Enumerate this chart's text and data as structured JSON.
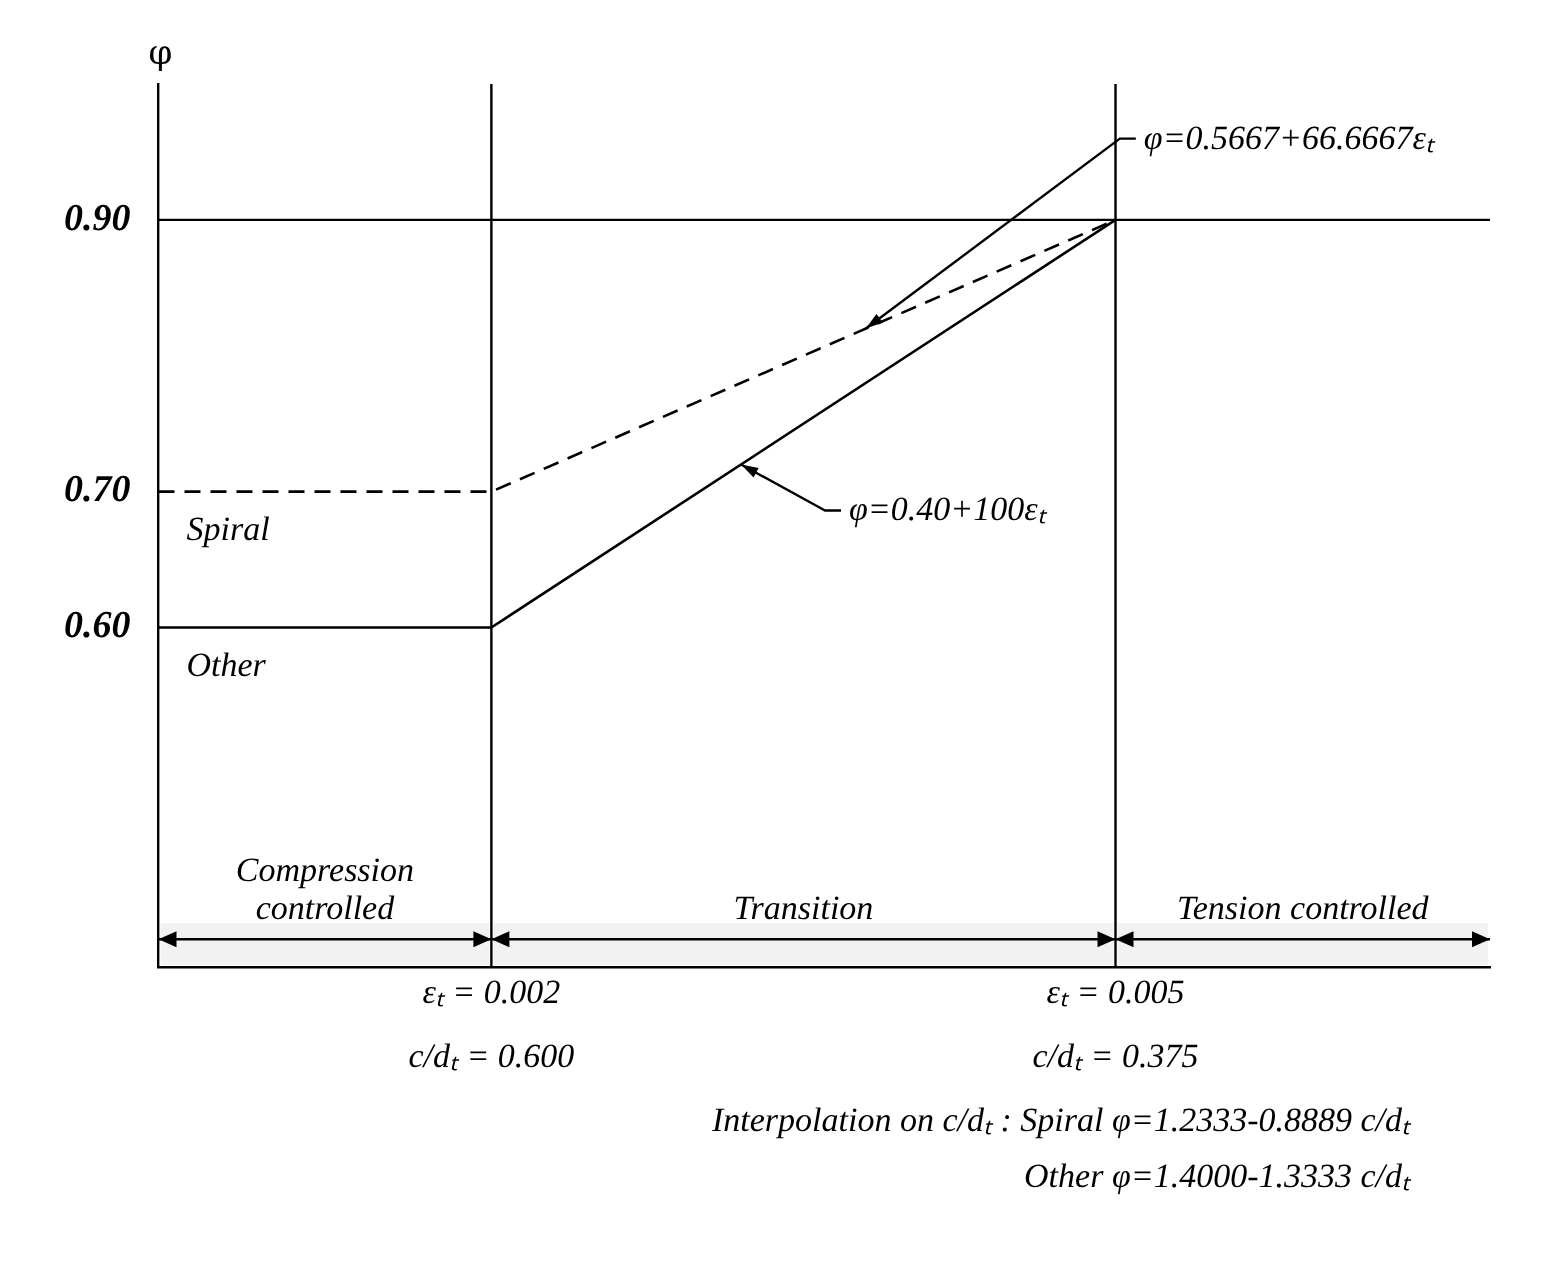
{
  "chart_data": {
    "type": "line",
    "ylabel": "φ",
    "x": [
      0.0004,
      0.002,
      0.005
    ],
    "series": [
      {
        "name": "Spiral",
        "color": "#000000",
        "values": [
          0.7,
          0.7,
          0.9
        ],
        "line_style": "dashed"
      },
      {
        "name": "Other",
        "color": "#000000",
        "values": [
          0.6,
          0.6,
          0.9
        ],
        "line_style": "solid"
      }
    ],
    "xlim": [
      0.0004,
      0.0068
    ],
    "xticks": [
      {
        "value": 0.002,
        "label": "εₜ = 0.002"
      },
      {
        "value": 0.005,
        "label": "εₜ = 0.005"
      }
    ],
    "ylim": [
      0.35,
      1.0
    ],
    "yticks": [
      {
        "value": 0.6,
        "label": "0.60"
      },
      {
        "value": 0.7,
        "label": "0.70"
      },
      {
        "value": 0.9,
        "label": "0.90"
      }
    ],
    "ref_lines": [
      {
        "axis": "y",
        "value": 0.9,
        "color": "#000000"
      },
      {
        "axis": "x",
        "value": 0.002,
        "color": "#000000"
      },
      {
        "axis": "x",
        "value": 0.005,
        "color": "#000000"
      }
    ],
    "bands": [
      {
        "axis": "x",
        "from": 0.0004,
        "to": 0.002,
        "label": "Compression controlled",
        "color": "#f2f2f2"
      },
      {
        "axis": "x",
        "from": 0.002,
        "to": 0.005,
        "label": "Transition",
        "color": "#f2f2f2"
      },
      {
        "axis": "x",
        "from": 0.005,
        "to": 0.0068,
        "label": "Tension controlled",
        "color": "#f2f2f2"
      }
    ],
    "annotations": [
      "c/dₜ = 0.600",
      "c/dₜ = 0.375",
      {
        "text": "φ=0.5667+66.6667εₜ",
        "x": 0.0038,
        "y": 0.82
      },
      {
        "text": "φ=0.40+100εₜ",
        "x": 0.0032,
        "y": 0.72
      },
      "Interpolation on c/dₜ : Spiral φ=1.2333-0.8889 c/dₜ",
      "Other φ=1.4000-1.3333 c/dₜ"
    ],
    "legend": false,
    "grid": false,
    "marker": "none"
  }
}
